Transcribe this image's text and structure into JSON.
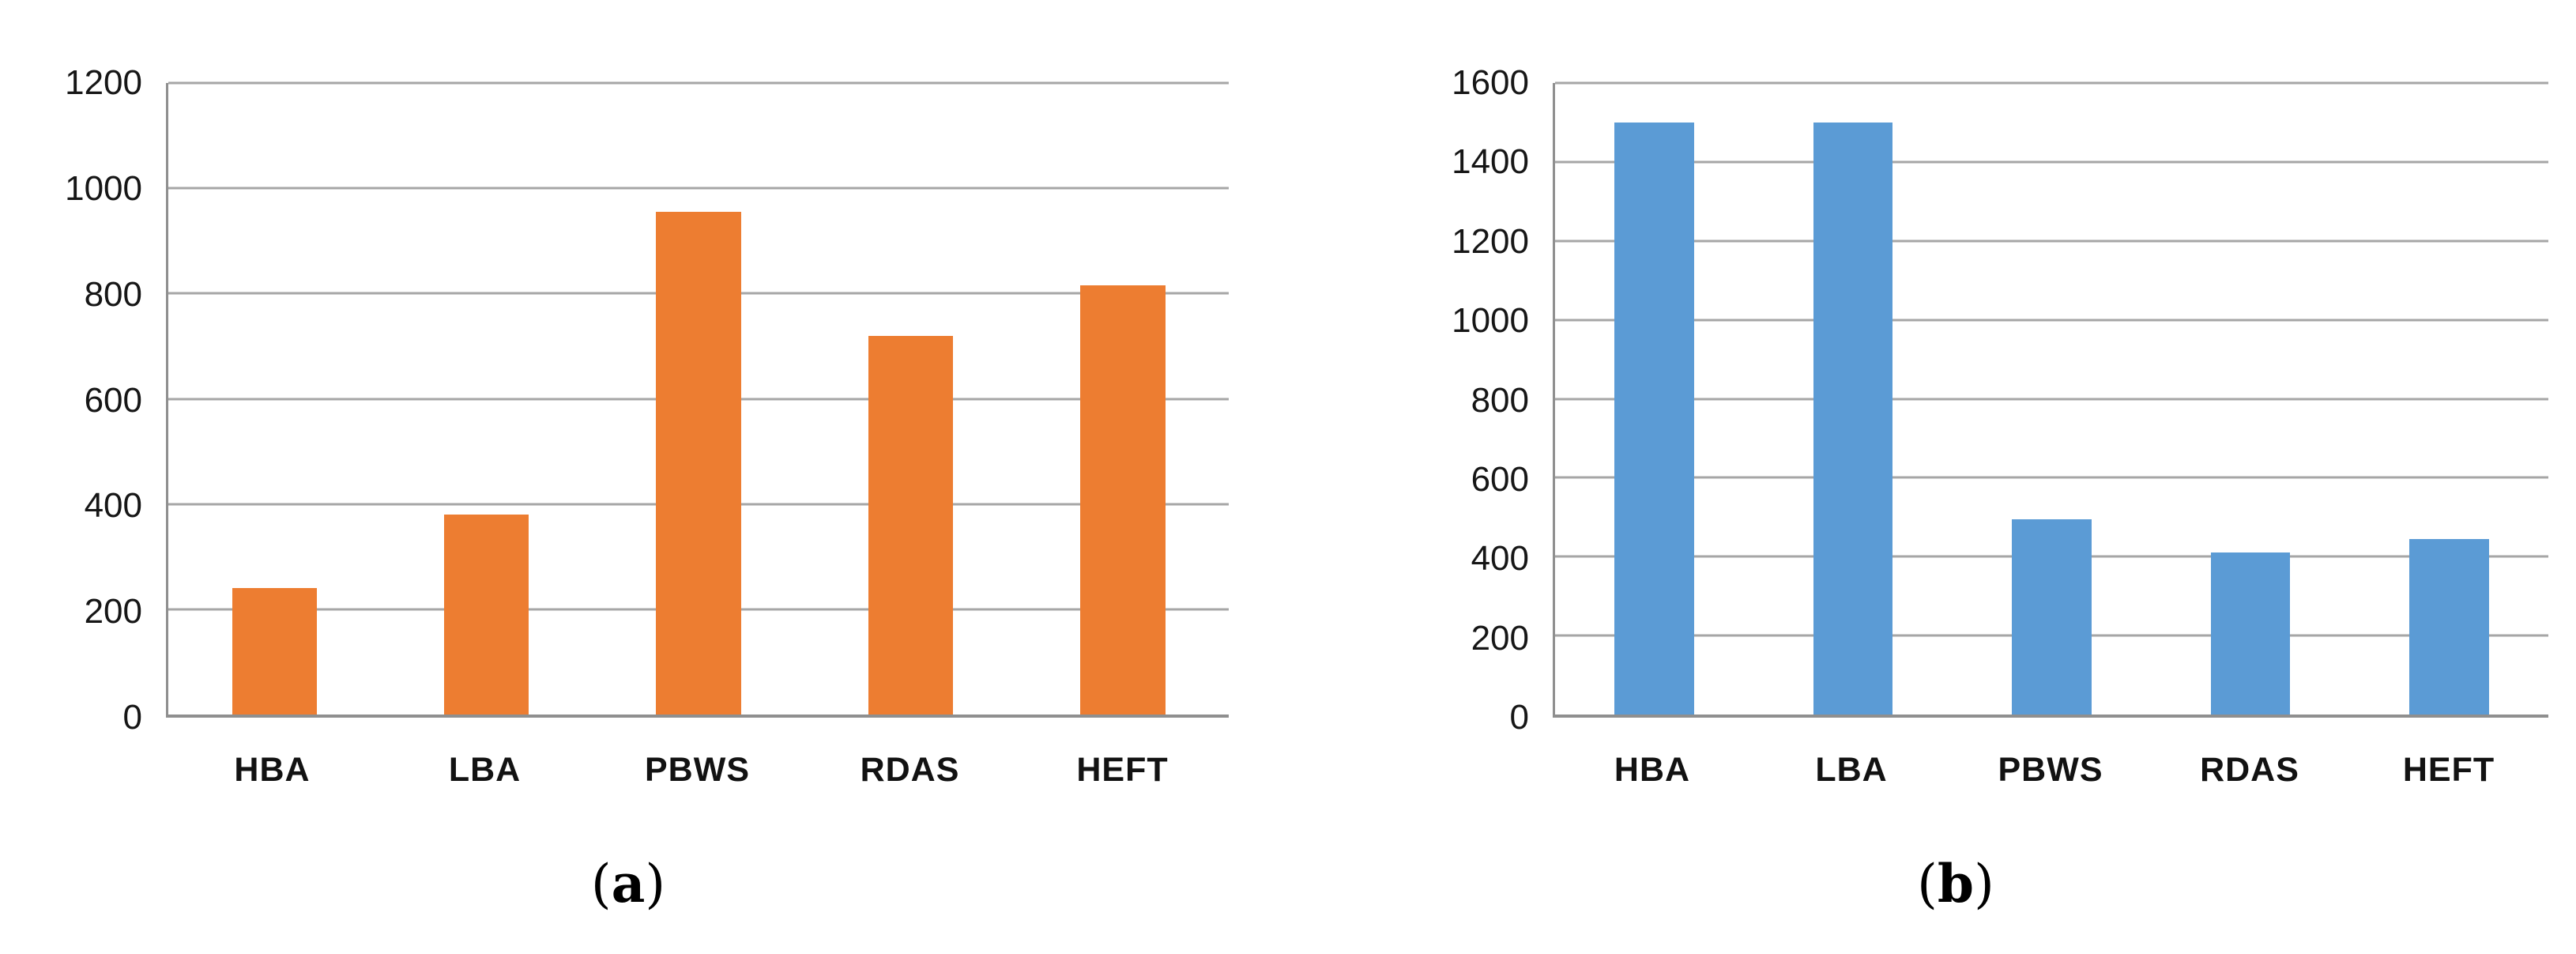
{
  "figure": {
    "background": "#ffffff",
    "text_color": "#161616",
    "gridline_color": "#a6a6a6",
    "axis_color": "#8f8f8f"
  },
  "captions": [
    {
      "open": "(",
      "letter": "a",
      "close": ")"
    },
    {
      "open": "(",
      "letter": "b",
      "close": ")"
    }
  ],
  "chart_data": [
    {
      "type": "bar",
      "panel": "a",
      "title": "",
      "xlabel": "",
      "ylabel": "",
      "categories": [
        "HBA",
        "LBA",
        "PBWS",
        "RDAS",
        "HEFT"
      ],
      "values": [
        240,
        380,
        955,
        720,
        815
      ],
      "ylim": [
        0,
        1200
      ],
      "ytick_step": 200,
      "yticks": [
        1200,
        1000,
        800,
        600,
        400,
        200,
        0
      ],
      "bar_color": "#ED7D31",
      "grid": "horizontal",
      "legend": "none"
    },
    {
      "type": "bar",
      "panel": "b",
      "title": "",
      "xlabel": "",
      "ylabel": "",
      "categories": [
        "HBA",
        "LBA",
        "PBWS",
        "RDAS",
        "HEFT"
      ],
      "values": [
        1500,
        1500,
        495,
        410,
        445
      ],
      "ylim": [
        0,
        1600
      ],
      "ytick_step": 200,
      "yticks": [
        1600,
        1400,
        1200,
        1000,
        800,
        600,
        400,
        200,
        0
      ],
      "bar_color": "#5B9BD5",
      "grid": "horizontal",
      "legend": "none"
    }
  ]
}
